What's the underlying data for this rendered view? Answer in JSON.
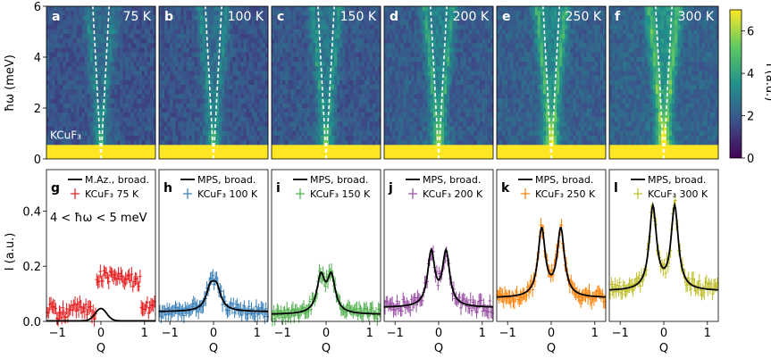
{
  "figure": {
    "top_ylabel": "ħω (meV)",
    "bottom_ylabel": "I (a.u.)",
    "xlabel": "Q",
    "colorbar_label": "I (a.u.)",
    "energy_window": "4 < ħω < 5 meV",
    "sample_label": "KCuF₃"
  },
  "chart_data": [
    {
      "type": "heatmap",
      "role": "top-row",
      "panels": [
        {
          "letter": "a",
          "temp": "75 K",
          "intensity_scale": 0.55
        },
        {
          "letter": "b",
          "temp": "100 K",
          "intensity_scale": 0.6
        },
        {
          "letter": "c",
          "temp": "150 K",
          "intensity_scale": 0.7
        },
        {
          "letter": "d",
          "temp": "200 K",
          "intensity_scale": 0.85
        },
        {
          "letter": "e",
          "temp": "250 K",
          "intensity_scale": 1.0
        },
        {
          "letter": "f",
          "temp": "300 K",
          "intensity_scale": 1.15
        }
      ],
      "ylim": [
        0,
        6
      ],
      "yticks": [
        0,
        2,
        4,
        6
      ],
      "colorbar": {
        "range": [
          0,
          7
        ],
        "ticks": [
          0,
          2,
          4,
          6
        ]
      },
      "colormap": [
        "#440154",
        "#3b528b",
        "#21918c",
        "#5ec962",
        "#fde725"
      ]
    },
    {
      "type": "line",
      "role": "bottom-row",
      "xlim": [
        -1.25,
        1.25
      ],
      "ylim": [
        0,
        0.55
      ],
      "xticks": [
        -1,
        0,
        1
      ],
      "yticks": [
        0,
        0.2,
        0.4
      ],
      "panels": [
        {
          "letter": "g",
          "color": "#e41a1c",
          "model": "M.Az., broad.",
          "data_label": "KCuF₃  75 K",
          "fit": {
            "base": 0.002,
            "amp": 0.045,
            "split": 0.0,
            "width": 0.13
          },
          "data_note": "asymmetric: ~0.05 for Q<-0.1, ~0.17 for Q>0"
        },
        {
          "letter": "h",
          "color": "#377eb8",
          "model": "MPS, broad.",
          "data_label": "KCuF₃  100 K",
          "fit": {
            "base": 0.035,
            "amp": 0.075,
            "split": 0.07,
            "width": 0.12
          }
        },
        {
          "letter": "i",
          "color": "#4daf4a",
          "model": "MPS, broad.",
          "data_label": "KCuF₃  150 K",
          "fit": {
            "base": 0.025,
            "amp": 0.13,
            "split": 0.12,
            "width": 0.11
          }
        },
        {
          "letter": "j",
          "color": "#984ea3",
          "model": "MPS, broad.",
          "data_label": "KCuF₃  200 K",
          "fit": {
            "base": 0.05,
            "amp": 0.195,
            "split": 0.17,
            "width": 0.1
          }
        },
        {
          "letter": "k",
          "color": "#ff7f00",
          "model": "MPS, broad.",
          "data_label": "KCuF₃  250 K",
          "fit": {
            "base": 0.085,
            "amp": 0.245,
            "split": 0.22,
            "width": 0.1
          }
        },
        {
          "letter": "l",
          "color": "#bcbd22",
          "model": "MPS, broad.",
          "data_label": "KCuF₃  300 K",
          "fit": {
            "base": 0.11,
            "amp": 0.3,
            "split": 0.25,
            "width": 0.1
          }
        }
      ]
    }
  ]
}
